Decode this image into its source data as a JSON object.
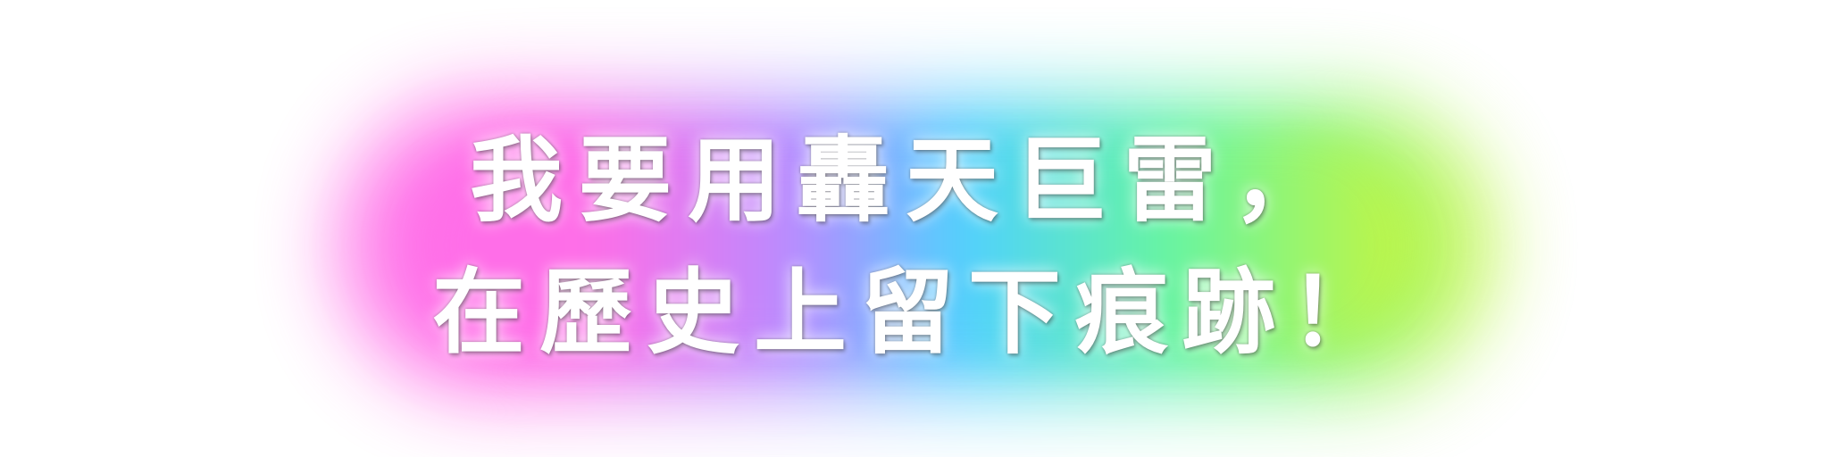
{
  "headline": {
    "line1": "我要用轟天巨雷，",
    "line2": "在歷史上留下痕跡！"
  },
  "colors": {
    "text": "#ffffff",
    "glow": [
      "#ff6ee8",
      "#b88cff",
      "#4fd2ff",
      "#66f5a3",
      "#c7f53d"
    ]
  }
}
